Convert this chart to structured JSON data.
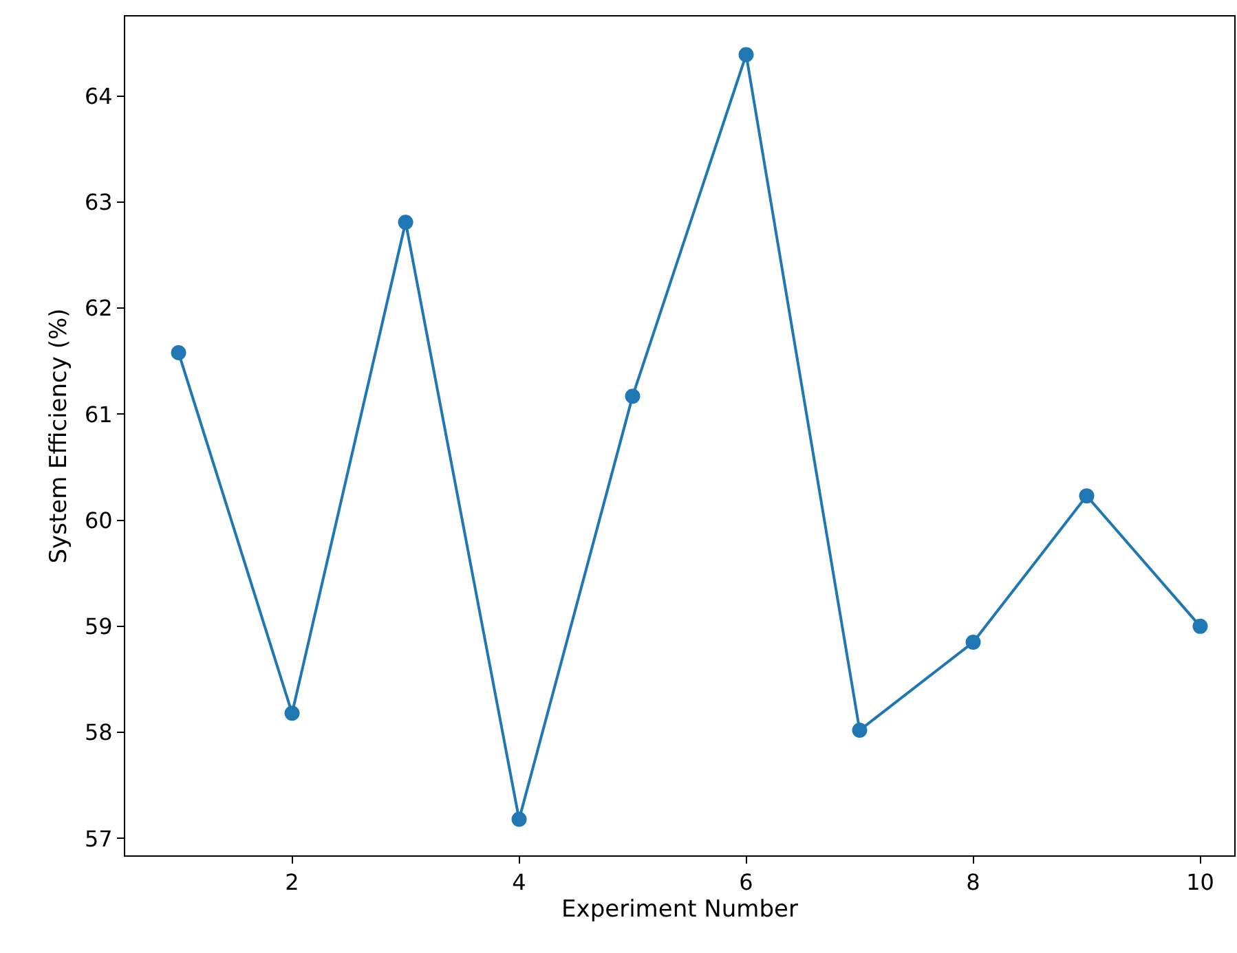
{
  "chart_data": {
    "type": "line",
    "xlabel": "Experiment Number",
    "ylabel": "System Efficiency (%)",
    "x": [
      1,
      2,
      3,
      4,
      5,
      6,
      7,
      8,
      9,
      10
    ],
    "series": [
      {
        "color": "#1f77b4",
        "values": [
          61.58,
          58.18,
          62.81,
          57.18,
          61.17,
          64.39,
          58.02,
          58.85,
          60.23,
          59.0
        ]
      }
    ],
    "xlim": [
      0.53,
      10.3
    ],
    "xticks": [
      2,
      4,
      6,
      8,
      10
    ],
    "ylim": [
      56.84,
      64.75
    ],
    "yticks": [
      57,
      58,
      59,
      60,
      61,
      62,
      63,
      64
    ],
    "marker": "circle",
    "line_style": "solid"
  }
}
